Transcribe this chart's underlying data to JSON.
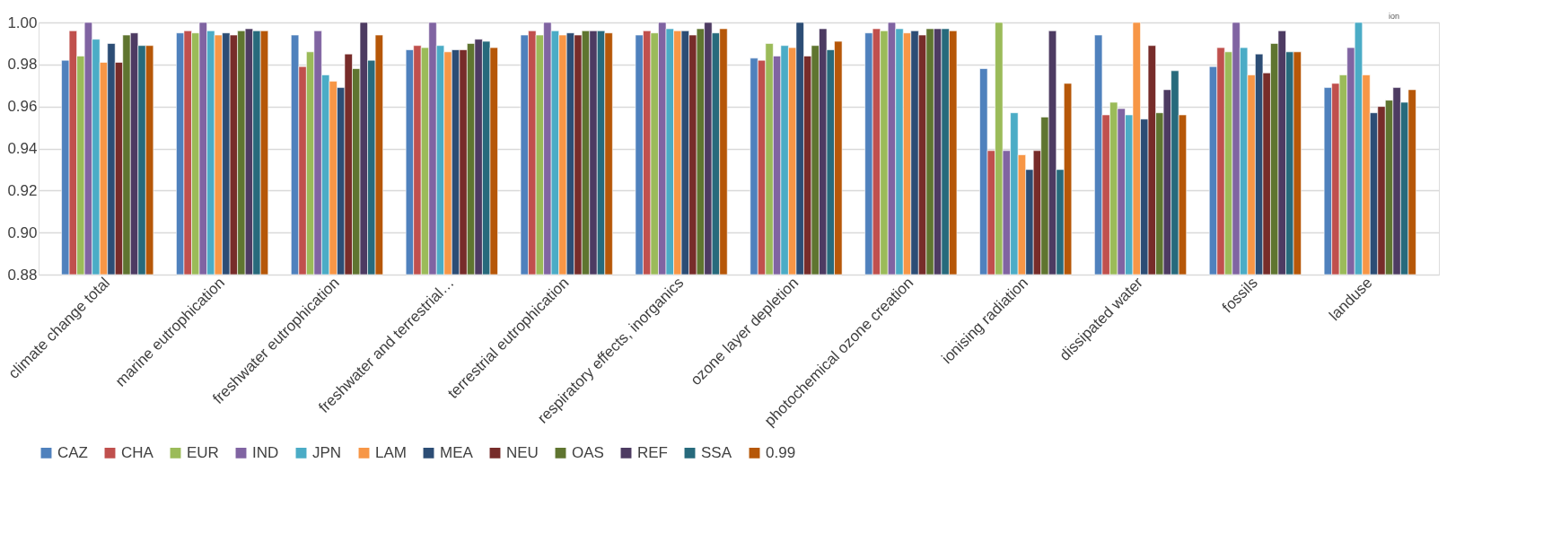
{
  "chart_data": {
    "type": "bar",
    "categories": [
      "climate change total",
      "marine eutrophication",
      "freshwater eutrophication",
      "freshwater and terrestrial…",
      "terrestrial eutrophication",
      "respiratory effects, inorganics",
      "ozone layer depletion",
      "photochemical ozone creation",
      "ionising radiation",
      "dissipated water",
      "fossils",
      "landuse"
    ],
    "series": [
      {
        "name": "CAZ",
        "color": "#4f81bd",
        "values": [
          0.982,
          0.995,
          0.994,
          0.987,
          0.994,
          0.994,
          0.983,
          0.995,
          0.978,
          0.994,
          0.979,
          0.969
        ]
      },
      {
        "name": "CHA",
        "color": "#c0504d",
        "values": [
          0.996,
          0.996,
          0.979,
          0.989,
          0.996,
          0.996,
          0.982,
          0.997,
          0.939,
          0.956,
          0.988,
          0.971
        ]
      },
      {
        "name": "EUR",
        "color": "#9bbb59",
        "values": [
          0.984,
          0.995,
          0.986,
          0.988,
          0.994,
          0.995,
          0.99,
          0.996,
          1.0,
          0.962,
          0.986,
          0.975
        ]
      },
      {
        "name": "IND",
        "color": "#8064a2",
        "values": [
          1.0,
          1.0,
          0.996,
          1.0,
          1.0,
          1.0,
          0.984,
          1.0,
          0.939,
          0.959,
          1.0,
          0.988
        ]
      },
      {
        "name": "JPN",
        "color": "#4bacc6",
        "values": [
          0.992,
          0.996,
          0.975,
          0.989,
          0.996,
          0.997,
          0.989,
          0.997,
          0.957,
          0.956,
          0.988,
          1.0
        ]
      },
      {
        "name": "LAM",
        "color": "#f79646",
        "values": [
          0.981,
          0.994,
          0.972,
          0.986,
          0.994,
          0.996,
          0.988,
          0.995,
          0.937,
          1.0,
          0.975,
          0.975
        ]
      },
      {
        "name": "MEA",
        "color": "#2c4d75",
        "values": [
          0.99,
          0.995,
          0.969,
          0.987,
          0.995,
          0.996,
          1.0,
          0.996,
          0.93,
          0.954,
          0.985,
          0.957
        ]
      },
      {
        "name": "NEU",
        "color": "#772c2a",
        "values": [
          0.981,
          0.994,
          0.985,
          0.987,
          0.994,
          0.994,
          0.984,
          0.994,
          0.939,
          0.989,
          0.976,
          0.96
        ]
      },
      {
        "name": "OAS",
        "color": "#5f7530",
        "values": [
          0.994,
          0.996,
          0.978,
          0.99,
          0.996,
          0.997,
          0.989,
          0.997,
          0.955,
          0.957,
          0.99,
          0.963
        ]
      },
      {
        "name": "REF",
        "color": "#4d3b62",
        "values": [
          0.995,
          0.997,
          1.0,
          0.992,
          0.996,
          1.0,
          0.997,
          0.997,
          0.996,
          0.968,
          0.996,
          0.969
        ]
      },
      {
        "name": "SSA",
        "color": "#276a7c",
        "values": [
          0.989,
          0.996,
          0.982,
          0.991,
          0.996,
          0.995,
          0.987,
          0.997,
          0.93,
          0.977,
          0.986,
          0.962
        ]
      },
      {
        "name": "0.99",
        "color": "#b65708",
        "values": [
          0.989,
          0.996,
          0.994,
          0.988,
          0.995,
          0.997,
          0.991,
          0.996,
          0.971,
          0.956,
          0.986,
          0.968
        ]
      }
    ],
    "ylim": [
      0.88,
      1.0
    ],
    "yticks": [
      0.88,
      {
        "value": 0.9,
        "label": "0.90"
      },
      0.92,
      0.94,
      0.96,
      0.98,
      {
        "value": 1.0,
        "label": "1.00"
      }
    ],
    "grid": "y",
    "legend": "bottom",
    "annotations": [
      "ion"
    ]
  }
}
